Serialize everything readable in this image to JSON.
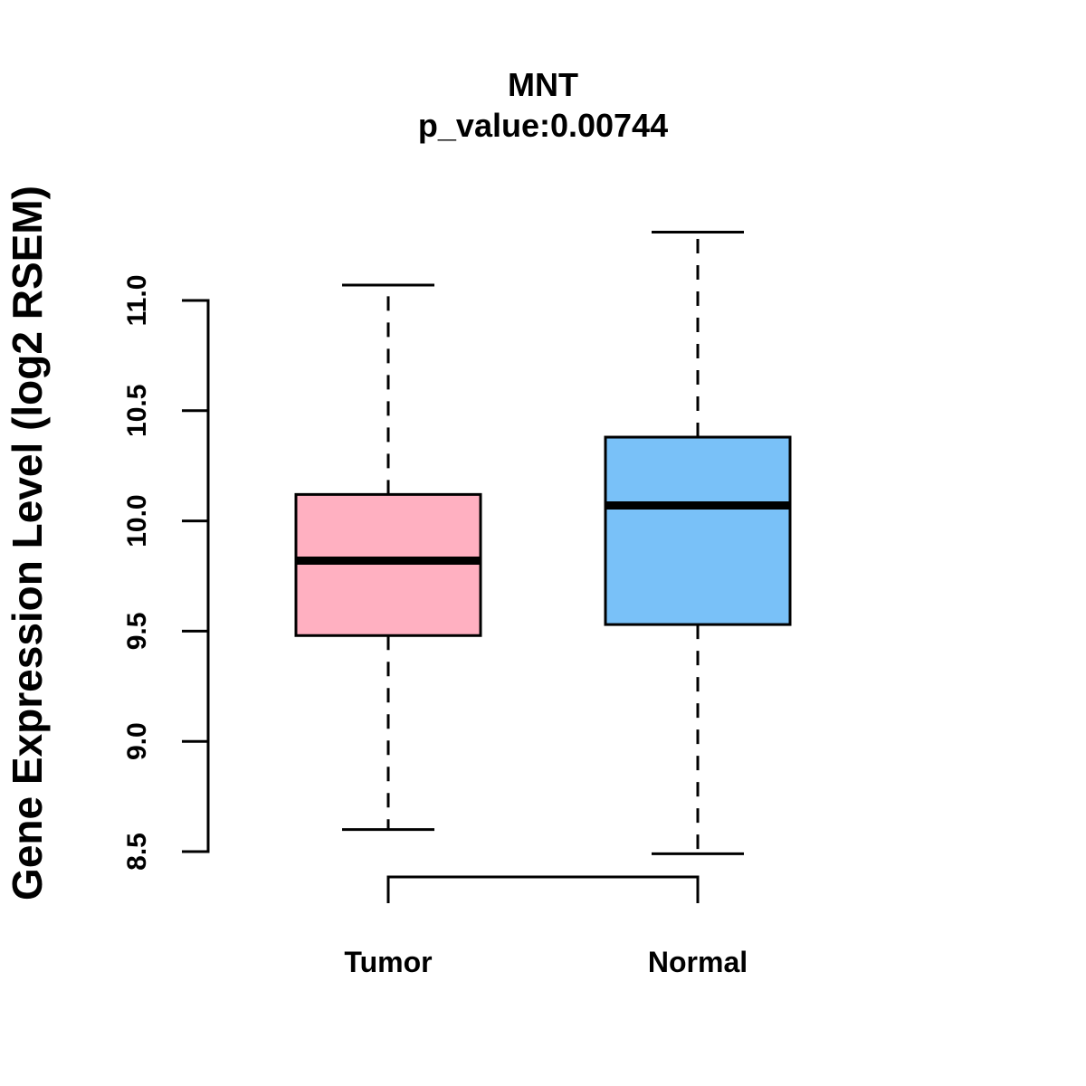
{
  "chart_data": {
    "type": "box",
    "title": "MNT",
    "subtitle": "p_value:0.00744",
    "xlabel": "",
    "ylabel": "Gene Expression Level (log2 RSEM)",
    "ylim": [
      8.5,
      11.0
    ],
    "yticks": [
      8.5,
      9.0,
      9.5,
      10.0,
      10.5,
      11.0
    ],
    "ytick_labels": [
      "8.5",
      "9.0",
      "9.5",
      "10.0",
      "10.5",
      "11.0"
    ],
    "grid": false,
    "categories": [
      "Tumor",
      "Normal"
    ],
    "series": [
      {
        "name": "Tumor",
        "color": "#FFB0C1",
        "whisker_low": 8.6,
        "q1": 9.48,
        "median": 9.82,
        "q3": 10.12,
        "whisker_high": 11.07
      },
      {
        "name": "Normal",
        "color": "#79C1F8",
        "whisker_low": 8.49,
        "q1": 9.53,
        "median": 10.07,
        "q3": 10.38,
        "whisker_high": 11.31
      }
    ],
    "comparison_bracket": [
      "Tumor",
      "Normal"
    ]
  }
}
